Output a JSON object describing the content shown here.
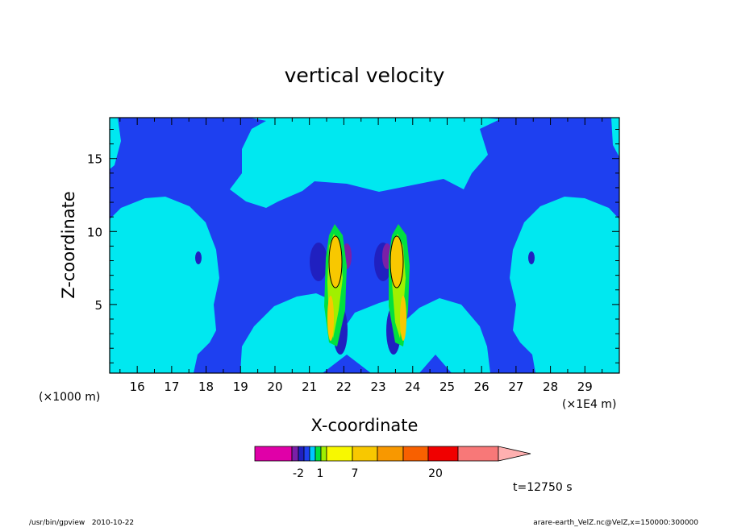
{
  "chart_data": {
    "type": "heatmap",
    "title": "vertical velocity",
    "xlabel": "X-coordinate",
    "ylabel": "Z-coordinate",
    "x_scale_note_left": "(×1000 m)",
    "x_scale_note_right": "(×1E4 m)",
    "xlim": [
      15.2,
      30.0
    ],
    "ylim": [
      0.3,
      17.8
    ],
    "x_ticks": [
      "16",
      "17",
      "18",
      "19",
      "20",
      "21",
      "22",
      "23",
      "24",
      "25",
      "26",
      "27",
      "28",
      "29"
    ],
    "y_ticks": [
      "5",
      "10",
      "15"
    ],
    "colorbar": {
      "colors": [
        "#e000a8",
        "#7a1fa8",
        "#2020c0",
        "#1e40f0",
        "#00c8ff",
        "#00e040",
        "#a0f000",
        "#f8f800",
        "#f8c800",
        "#f89800",
        "#f86000",
        "#f00000",
        "#f87878",
        "#ffb0b0"
      ],
      "labels": [
        "-2",
        "1",
        "7",
        "20"
      ]
    },
    "time_annotation": "t=12750 s",
    "program_footer": "/usr/bin/gpview   2010-10-22",
    "file_footer": "arare-earth_VelZ.nc@VelZ,x=150000:300000",
    "colors": {
      "background_field": "#1e40f0",
      "light_field": "#00e8f0",
      "dark_core": "#2020c0",
      "negative_core": "#7a1fa8",
      "updraft_low": "#00e040",
      "updraft_mid": "#f8f800",
      "updraft_high": "#f8c800"
    }
  }
}
